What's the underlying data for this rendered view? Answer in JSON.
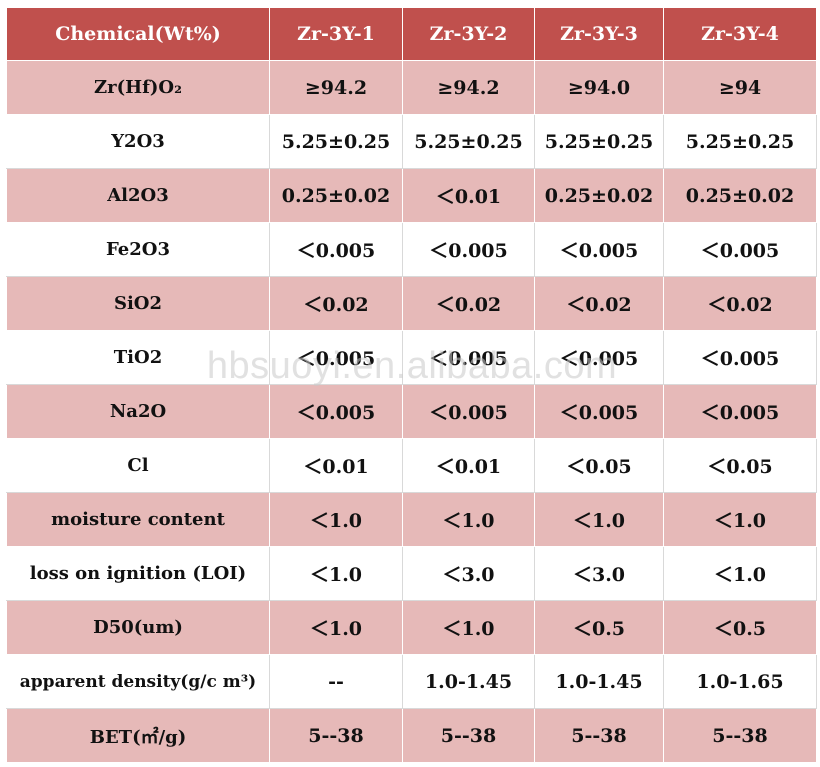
{
  "table": {
    "headers": [
      "Chemical(Wt%)",
      "Zr-3Y-1",
      "Zr-3Y-2",
      "Zr-3Y-3",
      "Zr-3Y-4"
    ],
    "rows": [
      {
        "label": "Zr(Hf)O₂",
        "values": [
          "≥94.2",
          "≥94.2",
          "≥94.0",
          "≥94"
        ]
      },
      {
        "label": "Y2O3",
        "values": [
          "5.25±0.25",
          "5.25±0.25",
          "5.25±0.25",
          "5.25±0.25"
        ]
      },
      {
        "label": "Al2O3",
        "values": [
          "0.25±0.02",
          "＜0.01",
          "0.25±0.02",
          "0.25±0.02"
        ]
      },
      {
        "label": "Fe2O3",
        "values": [
          "＜0.005",
          "＜0.005",
          "＜0.005",
          "＜0.005"
        ]
      },
      {
        "label": "SiO2",
        "values": [
          "＜0.02",
          "＜0.02",
          "＜0.02",
          "＜0.02"
        ]
      },
      {
        "label": "TiO2",
        "values": [
          "＜0.005",
          "＜0.005",
          "＜0.005",
          "＜0.005"
        ]
      },
      {
        "label": "Na2O",
        "values": [
          "＜0.005",
          "＜0.005",
          "＜0.005",
          "＜0.005"
        ]
      },
      {
        "label": "Cl",
        "values": [
          "＜0.01",
          "＜0.01",
          "＜0.05",
          "＜0.05"
        ]
      },
      {
        "label": "moisture content",
        "values": [
          "＜1.0",
          "＜1.0",
          "＜1.0",
          "＜1.0"
        ]
      },
      {
        "label": "loss on ignition (LOI)",
        "values": [
          "＜1.0",
          "＜3.0",
          "＜3.0",
          "＜1.0"
        ]
      },
      {
        "label": "D50(um)",
        "values": [
          "＜1.0",
          "＜1.0",
          "＜0.5",
          "＜0.5"
        ]
      },
      {
        "label": "apparent density(g/c m³)",
        "values": [
          "--",
          "1.0-1.45",
          "1.0-1.45",
          "1.0-1.65"
        ]
      },
      {
        "label": "BET(㎡/g)",
        "values": [
          "5--38",
          "5--38",
          "5--38",
          "5--38"
        ]
      }
    ]
  },
  "watermark": "hbsuoyi.en.alibaba.com",
  "colors": {
    "header": "#c0504d",
    "shaded_row": "#e6b9b8",
    "plain_row": "#ffffff"
  }
}
